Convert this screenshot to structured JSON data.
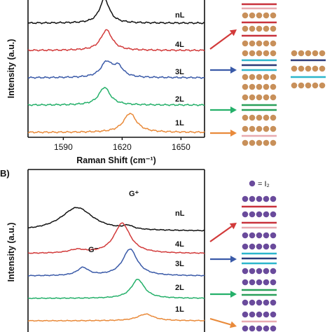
{
  "colors": {
    "nL": "#111111",
    "4L": "#d23a3a",
    "3L": "#3a5aa8",
    "2L": "#25b06a",
    "1L": "#e98a3a",
    "bromine_dot": "#c8905a",
    "iodine_dot": "#6a4b9c",
    "layer_red": "#c8323c",
    "layer_pink": "#e8aab0",
    "layer_cyan": "#2cb6cc",
    "layer_navy": "#2b3a78",
    "layer_green": "#2aa05a"
  },
  "panel_a": {
    "ylabel": "Intensity (a.u.)",
    "xlabel": "Raman Shift (cm⁻¹)",
    "ticks": [
      "1590",
      "1620",
      "1650"
    ],
    "labels": {
      "nL": "nL",
      "4L": "4L",
      "3L": "3L",
      "2L": "2L",
      "1L": "1L"
    }
  },
  "panel_b": {
    "panel_label": "B)",
    "ylabel": "Intensity (a.u.)",
    "legend": "= I₂",
    "g_plus": "G⁺",
    "g_minus": "G⁻",
    "labels": {
      "nL": "nL",
      "4L": "4L",
      "3L": "3L",
      "2L": "2L",
      "1L": "1L"
    }
  },
  "chart_data": [
    {
      "type": "line",
      "xlabel": "Raman Shift (cm⁻¹)",
      "ylabel": "Intensity (a.u.)",
      "xlim": [
        1572,
        1662
      ],
      "xticks": [
        1590,
        1620,
        1650
      ],
      "series": [
        {
          "name": "nL",
          "color": "#111111",
          "offset": 4.0,
          "noise": 0.03,
          "peaks": [
            {
              "x": 1611,
              "h": 0.9,
              "w": 3
            }
          ]
        },
        {
          "name": "4L",
          "color": "#d23a3a",
          "offset": 3.0,
          "noise": 0.03,
          "peaks": [
            {
              "x": 1612,
              "h": 0.75,
              "w": 3.5
            }
          ]
        },
        {
          "name": "3L",
          "color": "#3a5aa8",
          "offset": 2.0,
          "noise": 0.03,
          "peaks": [
            {
              "x": 1612,
              "h": 0.55,
              "w": 3.5
            },
            {
              "x": 1618,
              "h": 0.38,
              "w": 3
            }
          ]
        },
        {
          "name": "2L",
          "color": "#25b06a",
          "offset": 1.0,
          "noise": 0.03,
          "peaks": [
            {
              "x": 1611,
              "h": 0.65,
              "w": 3.5
            }
          ]
        },
        {
          "name": "1L",
          "color": "#e98a3a",
          "offset": 0.0,
          "noise": 0.03,
          "peaks": [
            {
              "x": 1624,
              "h": 0.7,
              "w": 4
            }
          ]
        }
      ]
    },
    {
      "type": "line",
      "ylabel": "Intensity (a.u.)",
      "xlim": [
        1572,
        1662
      ],
      "series": [
        {
          "name": "nL",
          "color": "#111111",
          "offset": 4.0,
          "noise": 0.02,
          "peaks": [
            {
              "x": 1597,
              "h": 1.05,
              "w": 10
            },
            {
              "x": 1623,
              "h": 0.15,
              "w": 3
            }
          ]
        },
        {
          "name": "4L",
          "color": "#d23a3a",
          "offset": 3.0,
          "noise": 0.02,
          "peaks": [
            {
              "x": 1620,
              "h": 1.35,
              "w": 5
            },
            {
              "x": 1597,
              "h": 0.15,
              "w": 5
            }
          ]
        },
        {
          "name": "3L",
          "color": "#3a5aa8",
          "offset": 2.0,
          "noise": 0.02,
          "peaks": [
            {
              "x": 1624,
              "h": 1.2,
              "w": 4.5
            },
            {
              "x": 1600,
              "h": 0.35,
              "w": 3.5
            }
          ]
        },
        {
          "name": "2L",
          "color": "#25b06a",
          "offset": 1.0,
          "noise": 0.02,
          "peaks": [
            {
              "x": 1628,
              "h": 0.85,
              "w": 4
            }
          ]
        },
        {
          "name": "1L",
          "color": "#e98a3a",
          "offset": 0.0,
          "noise": 0.02,
          "peaks": [
            {
              "x": 1632,
              "h": 0.3,
              "w": 5
            }
          ]
        }
      ]
    }
  ]
}
